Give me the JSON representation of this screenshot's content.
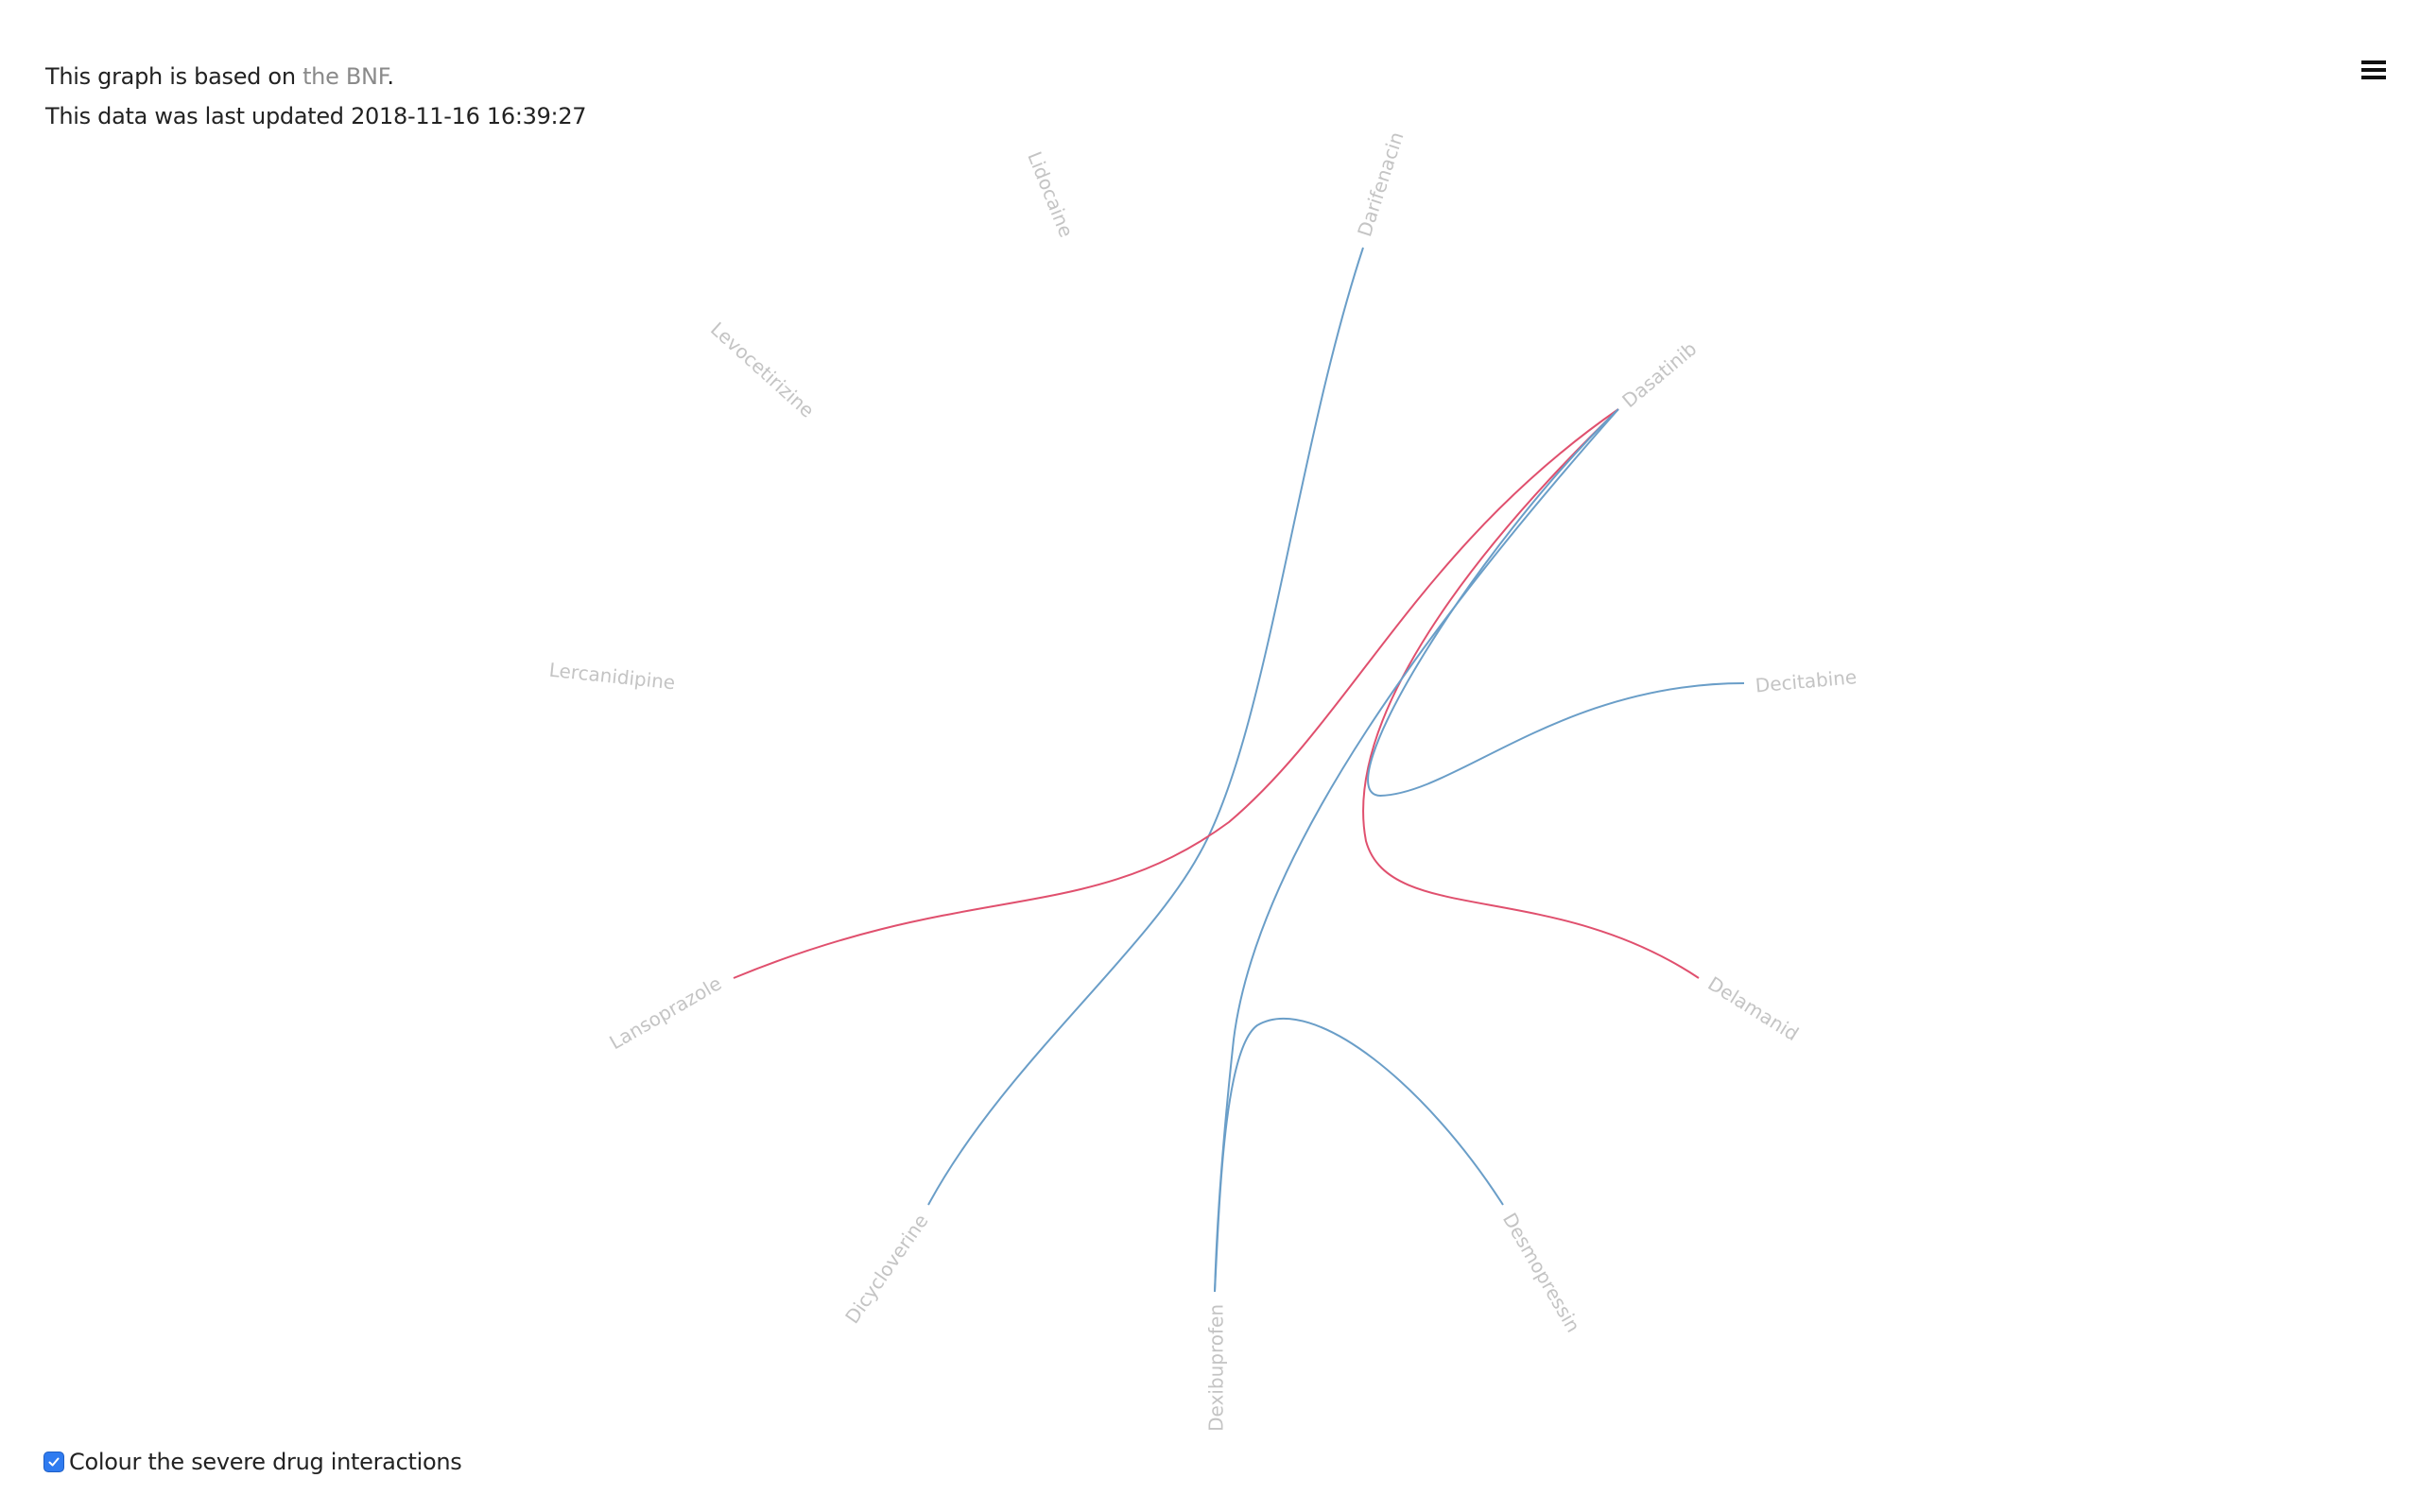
{
  "info": {
    "based_on_prefix": "This graph is based on ",
    "based_on_link": "the BNF",
    "based_on_suffix": ".",
    "updated_prefix": "This data was last updated ",
    "updated_value": "2018-11-16 16:39:27"
  },
  "menu": {
    "icon": "hamburger-menu-icon"
  },
  "toggle": {
    "label": "Colour the severe drug interactions",
    "checked": true,
    "icon": "checkmark-icon"
  },
  "colors": {
    "normal_interaction": "#6a9ec8",
    "severe_interaction": "#e0506e",
    "label": "#c4c4c4",
    "checkbox": "#2f7bf0"
  },
  "graph": {
    "nodes": [
      {
        "id": "lidocaine",
        "label": "Lidocaine"
      },
      {
        "id": "darifenacin",
        "label": "Darifenacin"
      },
      {
        "id": "dasatinib",
        "label": "Dasatinib"
      },
      {
        "id": "decitabine",
        "label": "Decitabine"
      },
      {
        "id": "delamanid",
        "label": "Delamanid"
      },
      {
        "id": "desmopressin",
        "label": "Desmopressin"
      },
      {
        "id": "dexibuprofen",
        "label": "Dexibuprofen"
      },
      {
        "id": "dicycloverine",
        "label": "Dicycloverine"
      },
      {
        "id": "lansoprazole",
        "label": "Lansoprazole"
      },
      {
        "id": "lercanidipine",
        "label": "Lercanidipine"
      },
      {
        "id": "levocetirizine",
        "label": "Levocetirizine"
      }
    ],
    "links": [
      {
        "source": "darifenacin",
        "target": "dicycloverine",
        "severe": false
      },
      {
        "source": "dasatinib",
        "target": "lansoprazole",
        "severe": true
      },
      {
        "source": "dasatinib",
        "target": "delamanid",
        "severe": true
      },
      {
        "source": "dasatinib",
        "target": "decitabine",
        "severe": false
      },
      {
        "source": "dasatinib",
        "target": "dexibuprofen",
        "severe": false
      },
      {
        "source": "desmopressin",
        "target": "dexibuprofen",
        "severe": false
      }
    ]
  }
}
